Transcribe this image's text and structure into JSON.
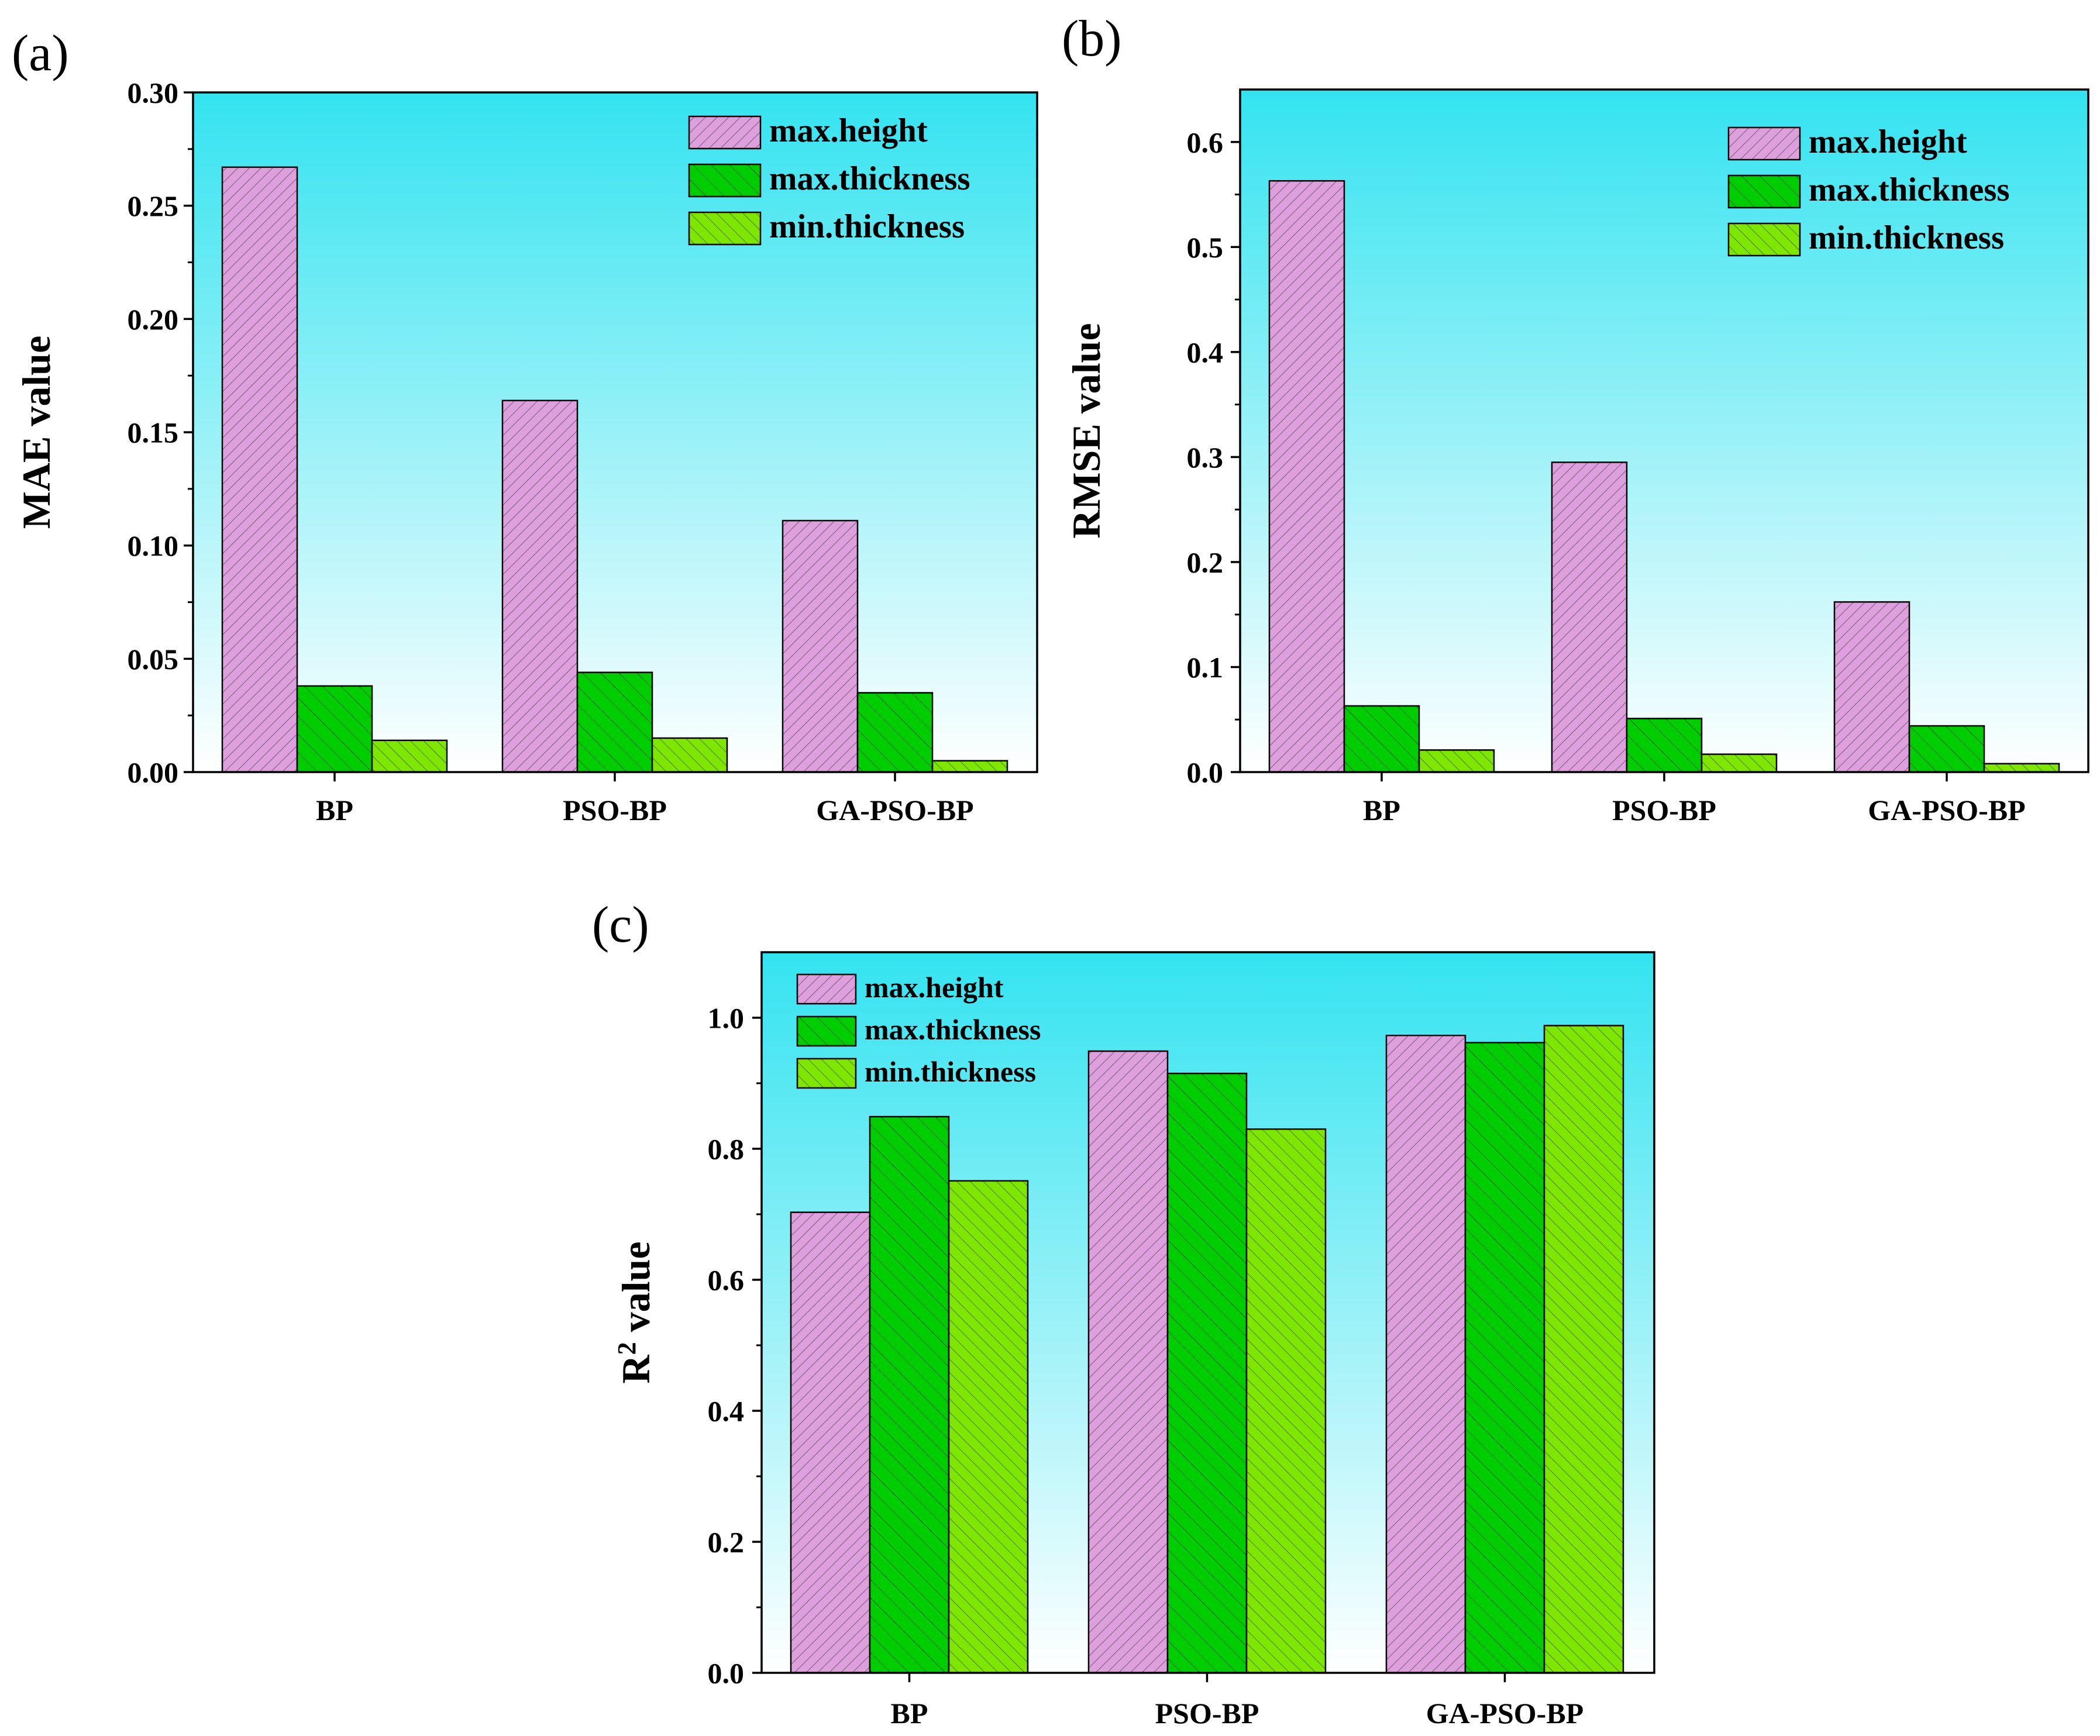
{
  "chart_data": [
    {
      "type": "bar",
      "panel": "(a)",
      "title": "",
      "xlabel": "",
      "ylabel": "MAE value",
      "ylim": [
        0,
        0.3
      ],
      "yticks": [
        "0.00",
        "0.05",
        "0.10",
        "0.15",
        "0.20",
        "0.25",
        "0.30"
      ],
      "categories": [
        "BP",
        "PSO-BP",
        "GA-PSO-BP"
      ],
      "series": [
        {
          "name": "max.height",
          "values": [
            0.267,
            0.164,
            0.111
          ]
        },
        {
          "name": "max.thickness",
          "values": [
            0.038,
            0.044,
            0.035
          ]
        },
        {
          "name": "min.thickness",
          "values": [
            0.014,
            0.015,
            0.005
          ]
        }
      ],
      "legend_position": "top-right"
    },
    {
      "type": "bar",
      "panel": "(b)",
      "title": "",
      "xlabel": "",
      "ylabel": "RMSE value",
      "ylim": [
        0,
        0.65
      ],
      "yticks": [
        "0.0",
        "0.1",
        "0.2",
        "0.3",
        "0.4",
        "0.5",
        "0.6"
      ],
      "categories": [
        "BP",
        "PSO-BP",
        "GA-PSO-BP"
      ],
      "series": [
        {
          "name": "max.height",
          "values": [
            0.563,
            0.295,
            0.162
          ]
        },
        {
          "name": "max.thickness",
          "values": [
            0.063,
            0.051,
            0.044
          ]
        },
        {
          "name": "min.thickness",
          "values": [
            0.021,
            0.017,
            0.008
          ]
        }
      ],
      "legend_position": "top-right"
    },
    {
      "type": "bar",
      "panel": "(c)",
      "title": "",
      "xlabel": "",
      "ylabel": "R",
      "ylabel_sup": "2",
      "ylabel_suffix": " value",
      "ylim": [
        0,
        1.1
      ],
      "yticks": [
        "0.0",
        "0.2",
        "0.4",
        "0.6",
        "0.8",
        "1.0"
      ],
      "categories": [
        "BP",
        "PSO-BP",
        "GA-PSO-BP"
      ],
      "series": [
        {
          "name": "max.height",
          "values": [
            0.703,
            0.949,
            0.973
          ]
        },
        {
          "name": "max.thickness",
          "values": [
            0.849,
            0.915,
            0.962
          ]
        },
        {
          "name": "min.thickness",
          "values": [
            0.751,
            0.83,
            0.988
          ]
        }
      ],
      "legend_position": "top-left"
    }
  ],
  "colors": {
    "max_height": "#dda0dd",
    "max_thickness": "#00cd00",
    "min_thickness": "#7fe600",
    "background_top": "#33e3f0",
    "background_bottom": "#ffffff"
  }
}
